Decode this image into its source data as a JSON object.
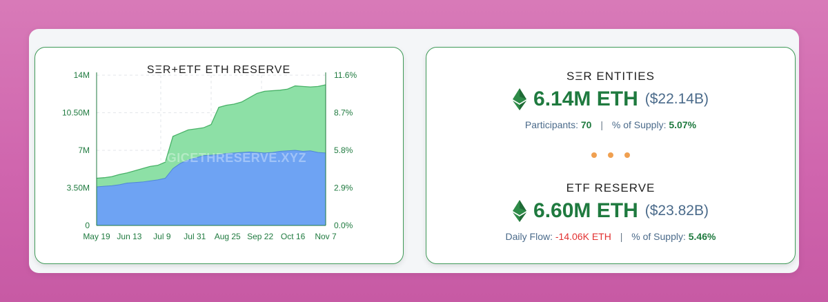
{
  "chart_data": {
    "type": "area",
    "title": "SΞR+ETF ETH RESERVE",
    "watermark": "STRATEGICETHRESERVE.XYZ",
    "x_ticks": [
      "May 19",
      "Jun 13",
      "Jul 9",
      "Jul 31",
      "Aug 25",
      "Sep 22",
      "Oct 16",
      "Nov 7"
    ],
    "y_ticks_left": [
      "0",
      "3.50M",
      "7M",
      "10.50M",
      "14M"
    ],
    "y_ticks_right": [
      "0.0%",
      "2.9%",
      "5.8%",
      "8.7%",
      "11.6%"
    ],
    "ylim": [
      0,
      14000000
    ],
    "grid": true,
    "colors": {
      "etf": "#6ea3f3",
      "ser": "#8de0a6",
      "ser_line": "#48b167",
      "etf_line": "#4f86d8"
    },
    "x": [
      "May 19",
      "May 26",
      "Jun 2",
      "Jun 9",
      "Jun 13",
      "Jun 20",
      "Jun 27",
      "Jul 2",
      "Jul 9",
      "Jul 15",
      "Jul 20",
      "Jul 26",
      "Jul 31",
      "Aug 5",
      "Aug 10",
      "Aug 15",
      "Aug 20",
      "Aug 25",
      "Aug 31",
      "Sep 5",
      "Sep 10",
      "Sep 16",
      "Sep 22",
      "Sep 28",
      "Oct 3",
      "Oct 9",
      "Oct 16",
      "Oct 22",
      "Oct 28",
      "Nov 3",
      "Nov 7"
    ],
    "series": [
      {
        "values": [
          3.6,
          3.65,
          3.7,
          3.8,
          3.95,
          4.0,
          4.05,
          4.15,
          4.25,
          4.4,
          5.3,
          5.8,
          6.1,
          6.3,
          6.5,
          6.55,
          6.6,
          6.7,
          6.75,
          6.8,
          6.85,
          6.8,
          6.75,
          6.8,
          6.9,
          6.95,
          7.0,
          6.9,
          6.95,
          6.8,
          6.75
        ]
      },
      {
        "values": [
          4.4,
          4.45,
          4.55,
          4.75,
          4.9,
          5.1,
          5.3,
          5.5,
          5.6,
          5.9,
          8.3,
          8.6,
          8.9,
          9.0,
          9.1,
          9.4,
          11.0,
          11.2,
          11.3,
          11.5,
          11.9,
          12.3,
          12.5,
          12.55,
          12.6,
          12.7,
          13.0,
          12.95,
          12.9,
          12.95,
          13.1
        ]
      }
    ]
  },
  "ser": {
    "title": "SΞR ENTITIES",
    "amount": "6.14M ETH",
    "usd": "($22.14B)",
    "participants_label": "Participants:",
    "participants_value": "70",
    "supply_label": "% of Supply:",
    "supply_value": "5.07%"
  },
  "etf": {
    "title": "ETF RESERVE",
    "amount": "6.60M ETH",
    "usd": "($23.82B)",
    "flow_label": "Daily Flow:",
    "flow_value": "-14.06K ETH",
    "supply_label": "% of Supply:",
    "supply_value": "5.46%"
  },
  "icons": {
    "eth": "ethereum-icon",
    "dots": "ellipsis-dots"
  }
}
